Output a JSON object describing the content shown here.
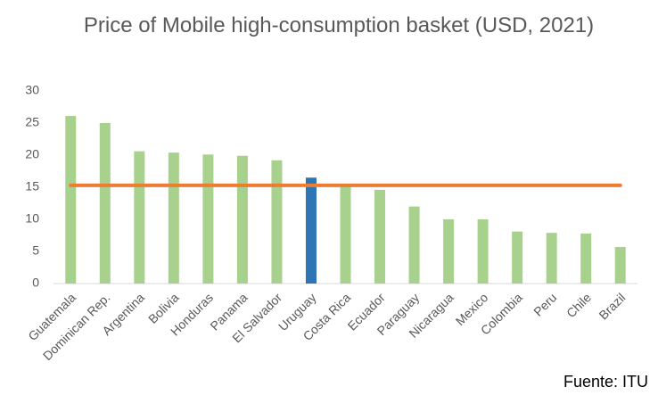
{
  "chart_data": {
    "type": "bar",
    "title": "Price of Mobile high-consumption basket (USD, 2021)",
    "categories": [
      "Guatemala",
      "Dominican Rep.",
      "Argentina",
      "Bolivia",
      "Honduras",
      "Panama",
      "El Salvador",
      "Uruguay",
      "Costa Rica",
      "Ecuador",
      "Paraguay",
      "Nicaragua",
      "Mexico",
      "Colombia",
      "Peru",
      "Chile",
      "Brazil"
    ],
    "series": [
      {
        "type": "bar",
        "colors": [
          "#a9d18e",
          "#a9d18e",
          "#a9d18e",
          "#a9d18e",
          "#a9d18e",
          "#a9d18e",
          "#a9d18e",
          "#2e75b6",
          "#a9d18e",
          "#a9d18e",
          "#a9d18e",
          "#a9d18e",
          "#a9d18e",
          "#a9d18e",
          "#a9d18e",
          "#a9d18e",
          "#a9d18e"
        ],
        "values": [
          26.1,
          25.0,
          20.6,
          20.4,
          20.1,
          19.9,
          19.2,
          16.5,
          15.2,
          14.6,
          12.0,
          10.0,
          10.0,
          8.1,
          7.9,
          7.8,
          5.7
        ]
      },
      {
        "type": "line",
        "color": "#ed7d31",
        "values": [
          15.3,
          15.3,
          15.3,
          15.3,
          15.3,
          15.3,
          15.3,
          15.3,
          15.3,
          15.3,
          15.3,
          15.3,
          15.3,
          15.3,
          15.3,
          15.3,
          15.3
        ]
      }
    ],
    "ylim": [
      0,
      30
    ],
    "yticks": [
      0,
      5,
      10,
      15,
      20,
      25,
      30
    ],
    "grid": false,
    "source": "Fuente: ITU"
  }
}
